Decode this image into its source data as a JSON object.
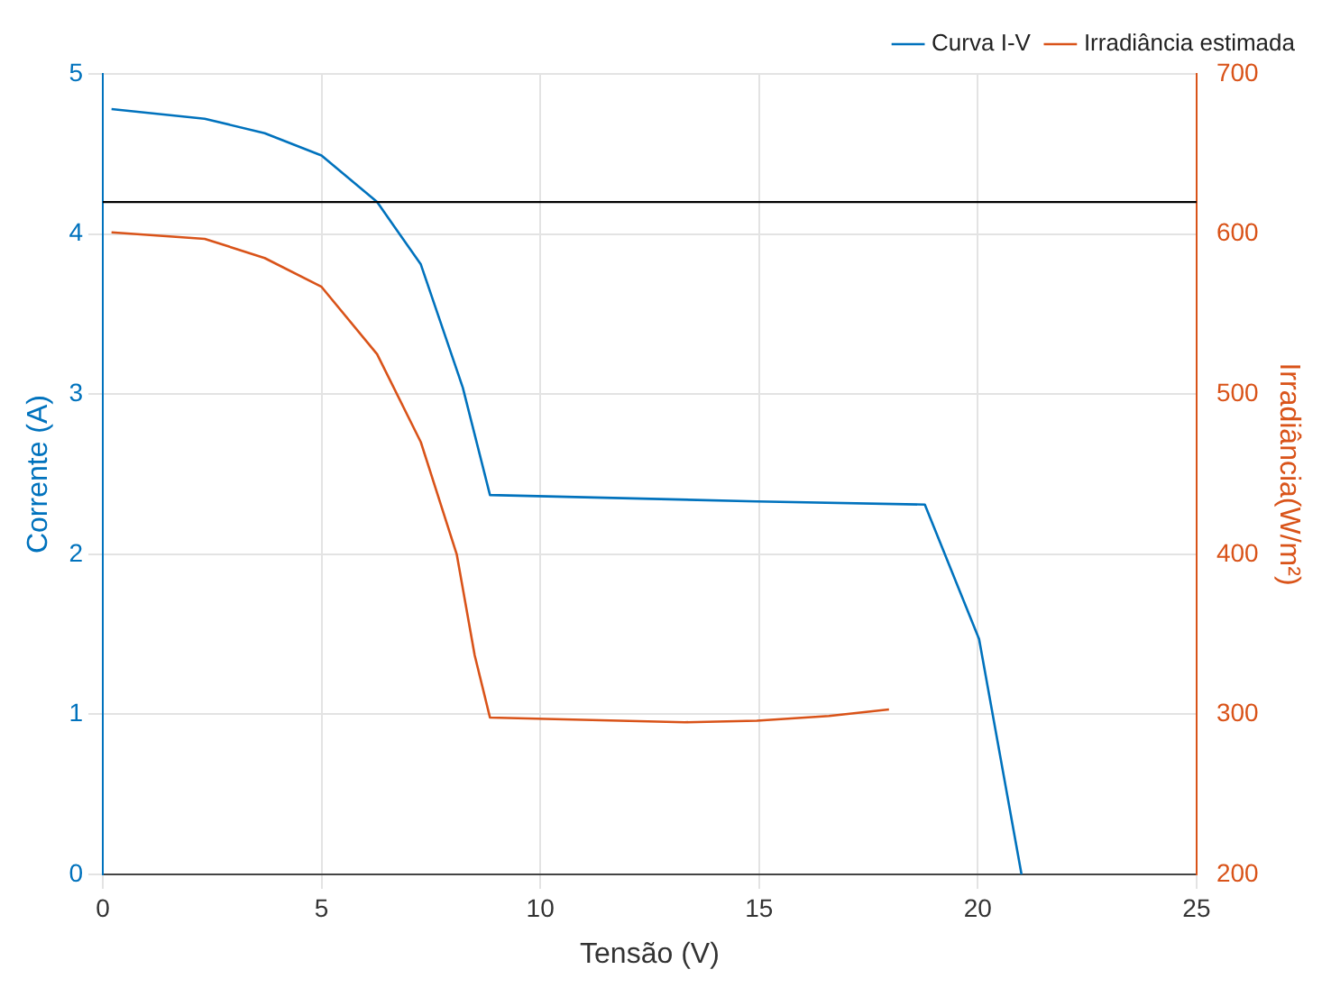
{
  "chart_data": {
    "type": "line",
    "xlabel": "Tensão (V)",
    "ylabel": "Corrente (A)",
    "y2label": "Irradiância(W/m²)",
    "xlim": [
      0,
      25
    ],
    "xticks": [
      0,
      5,
      10,
      15,
      20,
      25
    ],
    "ylim": [
      0,
      5
    ],
    "yticks": [
      0,
      1,
      2,
      3,
      4,
      5
    ],
    "y2lim": [
      200,
      700
    ],
    "y2ticks": [
      200,
      300,
      400,
      500,
      600,
      700
    ],
    "grid": true,
    "legend": "top right",
    "marker": "none",
    "line_style": "solid",
    "ref_lines": [
      {
        "axis": "y",
        "value": 4.2,
        "color": "#000000"
      }
    ],
    "series": [
      {
        "name": "Curva I-V",
        "color": "#0072bd",
        "x": [
          0.2,
          2.33,
          3.7,
          5,
          6.27,
          7.27,
          8.23,
          8.85,
          14.95,
          18.79,
          20.03,
          21.0
        ],
        "values": [
          4.78,
          4.72,
          4.63,
          4.49,
          4.2,
          3.81,
          3.04,
          2.37,
          2.33,
          2.31,
          1.47,
          0
        ]
      },
      {
        "name": "Irradiância estimada",
        "color": "#d95319",
        "axis": "y2",
        "x": [
          0.2,
          2.33,
          3.7,
          5,
          6.27,
          7.27,
          8.09,
          8.5,
          8.85,
          13.3,
          14.95,
          16.6,
          17.97
        ],
        "values": [
          601,
          597,
          585,
          567,
          525,
          470,
          400,
          337,
          298,
          295,
          296,
          299,
          303
        ]
      }
    ]
  }
}
